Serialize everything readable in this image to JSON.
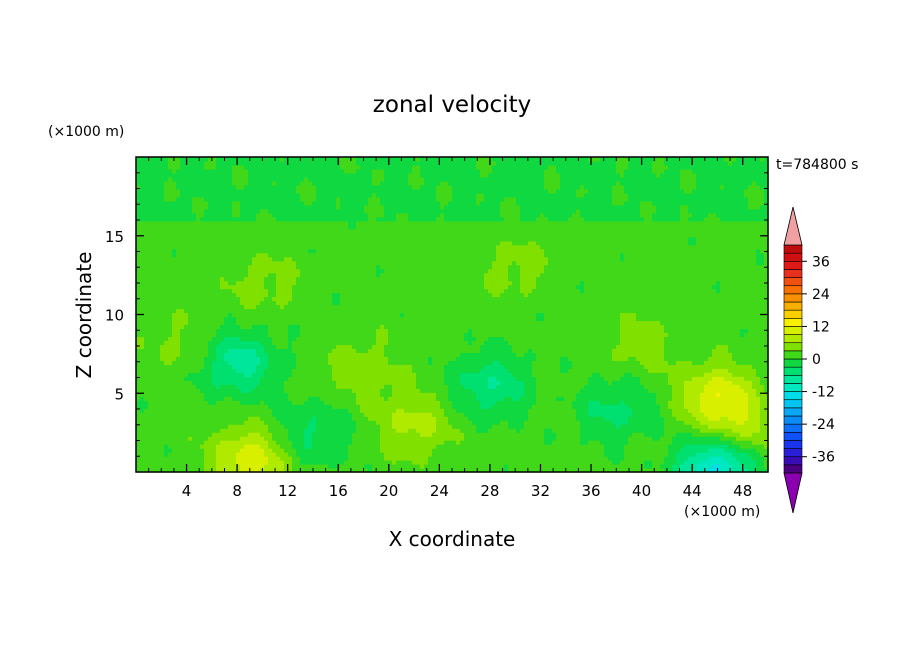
{
  "chart_data": {
    "type": "heatmap",
    "title": "zonal velocity",
    "xlabel": "X coordinate",
    "ylabel": "Z coordinate",
    "x_unit": "(×1000 m)",
    "y_unit": "(×1000 m)",
    "time_label": "t=784800 s",
    "xlim": [
      0,
      50
    ],
    "ylim": [
      0,
      20
    ],
    "x_ticks": [
      4,
      8,
      12,
      16,
      20,
      24,
      28,
      32,
      36,
      40,
      44,
      48
    ],
    "y_ticks": [
      5,
      10,
      15
    ],
    "colorbar": {
      "levels": [
        -42,
        -39,
        -36,
        -33,
        -30,
        -27,
        -24,
        -21,
        -18,
        -15,
        -12,
        -9,
        -6,
        -3,
        0,
        3,
        6,
        9,
        12,
        15,
        18,
        21,
        24,
        27,
        30,
        33,
        36,
        39,
        42
      ],
      "tick_labels": [
        "36",
        "24",
        "12",
        "0",
        "-12",
        "-24",
        "-36"
      ],
      "tick_values": [
        36,
        24,
        12,
        0,
        -12,
        -24,
        -36
      ],
      "colors": [
        "#4b0082",
        "#3a0db4",
        "#2a1ed8",
        "#1a35ee",
        "#1052f8",
        "#0c6ff8",
        "#0a8cf6",
        "#0aa8f4",
        "#06c4f0",
        "#00dce8",
        "#00e8c0",
        "#00e69a",
        "#00e070",
        "#10d840",
        "#40d818",
        "#80e000",
        "#b0ea00",
        "#d8f000",
        "#f8f000",
        "#fad000",
        "#f8b000",
        "#f89000",
        "#f87000",
        "#f05010",
        "#e83020",
        "#e01818",
        "#d01010",
        "#c00c0c"
      ],
      "over_color": "#f0a0a0",
      "under_color": "#8a00b0"
    },
    "anomalies": [
      {
        "x": 8,
        "z": 7,
        "value": -9
      },
      {
        "x": 9,
        "z": 0.8,
        "value": 10
      },
      {
        "x": 46,
        "z": 4.8,
        "value": 10
      },
      {
        "x": 46,
        "z": 0.3,
        "value": -15
      },
      {
        "x": 28,
        "z": 5.5,
        "value": -7
      },
      {
        "x": 22,
        "z": 3,
        "value": 6
      },
      {
        "x": 18,
        "z": 6.5,
        "value": 4
      },
      {
        "x": 38,
        "z": 4,
        "value": -5
      },
      {
        "x": 14,
        "z": 2.5,
        "value": -5
      },
      {
        "x": 10,
        "z": 12,
        "value": 3
      },
      {
        "x": 30,
        "z": 13,
        "value": 3
      },
      {
        "x": 40,
        "z": 8,
        "value": 3
      },
      {
        "x": 4,
        "z": 8,
        "value": 3
      },
      {
        "x": 48,
        "z": 2.5,
        "value": 6
      }
    ]
  }
}
